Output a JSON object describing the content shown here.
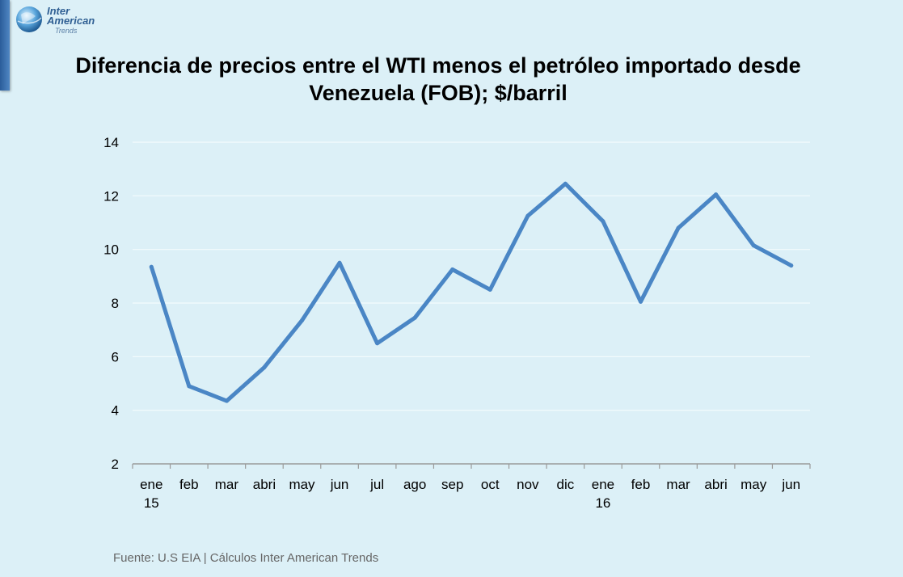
{
  "logo": {
    "line1": "Inter",
    "line2": "American",
    "line3": "Trends"
  },
  "title": {
    "line1": "Diferencia de precios entre el WTI  menos el petróleo importado desde",
    "line2": "Venezuela (FOB); $/barril"
  },
  "source": "Fuente: U.S EIA | Cálculos Inter American Trends",
  "colors": {
    "line": "#4a86c5",
    "background": "#dcf0f7"
  },
  "chart_data": {
    "type": "line",
    "title": "Diferencia de precios entre el WTI  menos el petróleo importado desde Venezuela (FOB); $/barril",
    "categories": [
      [
        "ene",
        "15"
      ],
      [
        "feb"
      ],
      [
        "mar"
      ],
      [
        "abri"
      ],
      [
        "may"
      ],
      [
        "jun"
      ],
      [
        "jul"
      ],
      [
        "ago"
      ],
      [
        "sep"
      ],
      [
        "oct"
      ],
      [
        "nov"
      ],
      [
        "dic"
      ],
      [
        "ene",
        "16"
      ],
      [
        "feb"
      ],
      [
        "mar"
      ],
      [
        "abri"
      ],
      [
        "may"
      ],
      [
        "jun"
      ]
    ],
    "series": [
      {
        "values": [
          9.35,
          4.9,
          4.35,
          5.6,
          7.35,
          9.5,
          6.5,
          7.45,
          9.25,
          8.5,
          11.25,
          12.45,
          11.05,
          8.05,
          10.8,
          12.05,
          10.15,
          9.4
        ]
      }
    ],
    "yticks": [
      2,
      4,
      6,
      8,
      10,
      12,
      14
    ],
    "ylim": [
      2,
      14
    ],
    "grid": true,
    "legend": false,
    "xlabel": "",
    "ylabel": ""
  }
}
